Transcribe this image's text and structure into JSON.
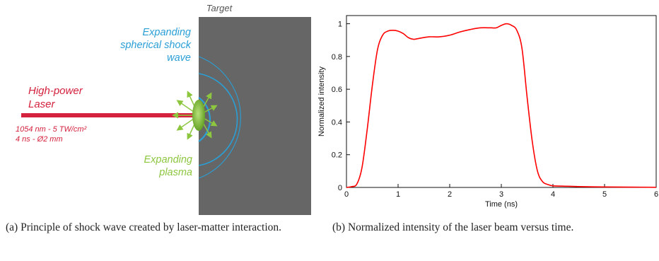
{
  "panel_a": {
    "target_label": "Target",
    "shock_label": [
      "Expanding",
      "spherical shock",
      "wave"
    ],
    "laser_label": [
      "High-power",
      "Laser"
    ],
    "laser_params": [
      "1054 nm - 5 TW/cm²",
      "4 ns - Ø2 mm"
    ],
    "plasma_label": [
      "Expanding",
      "plasma"
    ],
    "colors": {
      "target": "#666666",
      "laser": "#d4213d",
      "shock": "#2a9fd6",
      "plasma": "#8dc63f"
    }
  },
  "caption_a": "(a) Principle of shock wave created by laser-matter interaction.",
  "caption_b": "(b) Normalized intensity of the laser beam versus time.",
  "chart_data": {
    "type": "line",
    "xlabel": "Time (ns)",
    "ylabel": "Normalized intensity",
    "xlim": [
      0,
      6
    ],
    "ylim": [
      0,
      1.05
    ],
    "xticks": [
      0,
      1,
      2,
      3,
      4,
      5,
      6
    ],
    "yticks": [
      0,
      0.2,
      0.4,
      0.6,
      0.8,
      1
    ],
    "grid": false,
    "series": [
      {
        "color": "#ff0000",
        "x": [
          0,
          0.1,
          0.2,
          0.3,
          0.4,
          0.5,
          0.6,
          0.7,
          0.8,
          0.9,
          1.0,
          1.1,
          1.2,
          1.3,
          1.4,
          1.6,
          1.8,
          2.0,
          2.2,
          2.4,
          2.6,
          2.8,
          2.9,
          3.0,
          3.1,
          3.2,
          3.3,
          3.4,
          3.5,
          3.6,
          3.7,
          3.8,
          3.9,
          4.0,
          4.2,
          4.5,
          5.0,
          5.5,
          6.0
        ],
        "y": [
          0,
          0.005,
          0.02,
          0.12,
          0.35,
          0.62,
          0.84,
          0.93,
          0.955,
          0.96,
          0.955,
          0.94,
          0.915,
          0.905,
          0.91,
          0.92,
          0.92,
          0.93,
          0.95,
          0.965,
          0.975,
          0.975,
          0.975,
          0.99,
          1.0,
          0.99,
          0.96,
          0.85,
          0.55,
          0.28,
          0.1,
          0.035,
          0.018,
          0.01,
          0.008,
          0.005,
          0.003,
          0.002,
          0.001
        ]
      }
    ]
  }
}
